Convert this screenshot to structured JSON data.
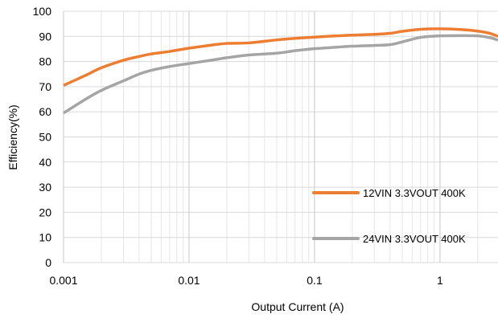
{
  "chart_data": {
    "type": "line",
    "title": "",
    "xlabel": "Output Current (A)",
    "ylabel": "Efficiency(%)",
    "x_scale": "log",
    "xlim": [
      0.001,
      2.9
    ],
    "ylim": [
      0,
      100
    ],
    "x_ticks": [
      {
        "value": 0.001,
        "label": "0.001"
      },
      {
        "value": 0.01,
        "label": "0.01"
      },
      {
        "value": 0.1,
        "label": "0.1"
      },
      {
        "value": 1,
        "label": "1"
      }
    ],
    "y_ticks": [
      {
        "value": 0,
        "label": "0"
      },
      {
        "value": 10,
        "label": "10"
      },
      {
        "value": 20,
        "label": "20"
      },
      {
        "value": 30,
        "label": "30"
      },
      {
        "value": 40,
        "label": "40"
      },
      {
        "value": 50,
        "label": "50"
      },
      {
        "value": 60,
        "label": "60"
      },
      {
        "value": 70,
        "label": "70"
      },
      {
        "value": 80,
        "label": "80"
      },
      {
        "value": 90,
        "label": "90"
      },
      {
        "value": 100,
        "label": "100"
      }
    ],
    "grid": true,
    "legend_position": "right",
    "series": [
      {
        "name": "12VIN 3.3VOUT 400K",
        "color": "#ED7D31",
        "x": [
          0.001,
          0.0015,
          0.002,
          0.003,
          0.004,
          0.005,
          0.007,
          0.01,
          0.015,
          0.02,
          0.03,
          0.05,
          0.07,
          0.1,
          0.15,
          0.2,
          0.3,
          0.4,
          0.5,
          0.7,
          1,
          1.5,
          2,
          2.5,
          2.9
        ],
        "y": [
          70.5,
          74.5,
          77.5,
          80.5,
          82,
          83,
          84,
          85.3,
          86.5,
          87.2,
          87.4,
          88.6,
          89.2,
          89.7,
          90.2,
          90.5,
          90.8,
          91.2,
          92,
          92.8,
          93,
          92.7,
          92.1,
          91.2,
          90
        ]
      },
      {
        "name": "24VIN 3.3VOUT 400K",
        "color": "#A5A5A5",
        "x": [
          0.001,
          0.0015,
          0.002,
          0.003,
          0.004,
          0.005,
          0.007,
          0.01,
          0.015,
          0.02,
          0.03,
          0.05,
          0.07,
          0.1,
          0.15,
          0.2,
          0.3,
          0.4,
          0.5,
          0.7,
          1,
          1.5,
          2,
          2.5,
          2.9
        ],
        "y": [
          59.5,
          65,
          68.5,
          72.3,
          75,
          76.5,
          78,
          79.2,
          80.5,
          81.5,
          82.6,
          83.3,
          84.3,
          85.1,
          85.7,
          86.1,
          86.4,
          86.7,
          87.8,
          89.6,
          90.2,
          90.3,
          90.2,
          89.5,
          88.5
        ]
      }
    ]
  }
}
